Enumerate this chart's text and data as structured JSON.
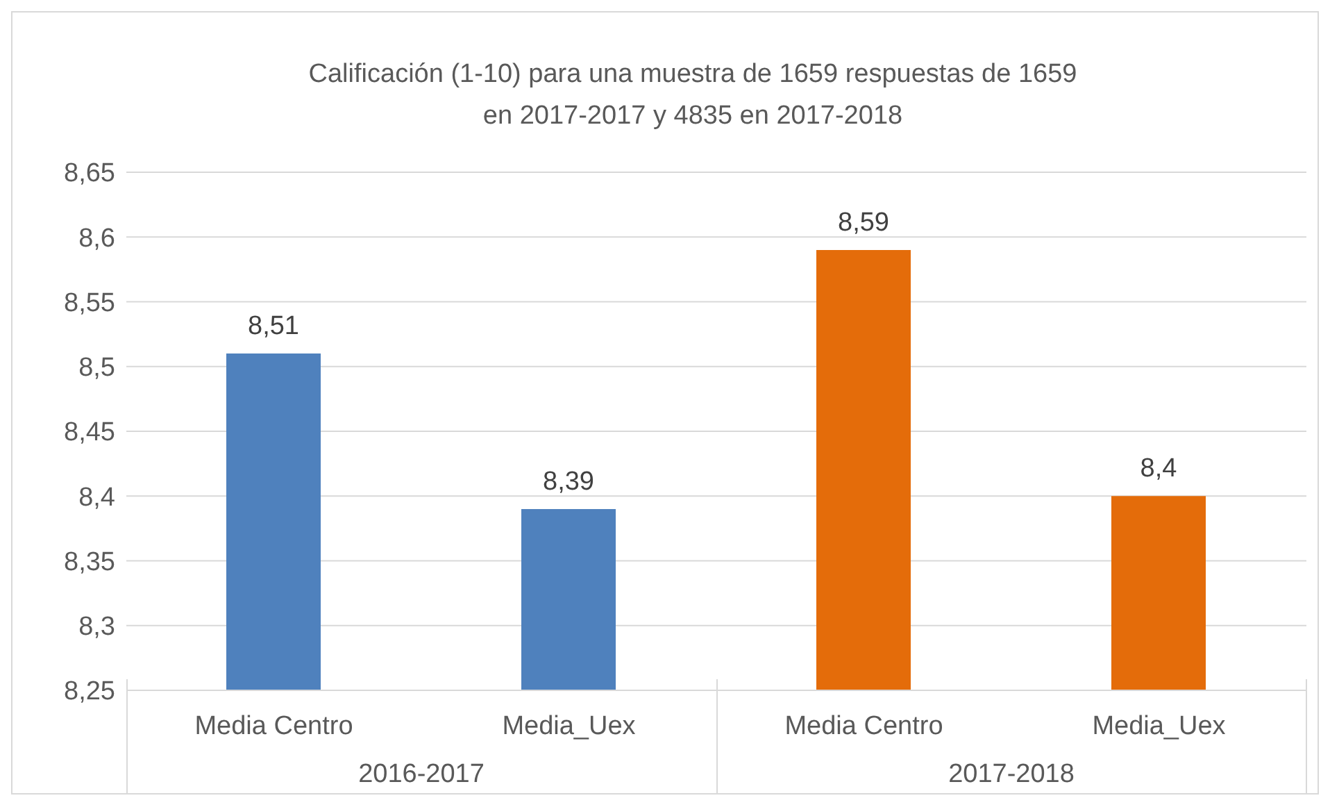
{
  "chart_data": {
    "type": "bar",
    "title": "Calificación (1-10) para una muestra de 1659 respuestas de 1659 en 2017-2017 y 4835 en 2017-2018",
    "categories": [
      "Media Centro",
      "Media_Uex",
      "Media Centro",
      "Media_Uex"
    ],
    "values": [
      8.51,
      8.39,
      8.59,
      8.4
    ],
    "colors": [
      "#4f81bd",
      "#4f81bd",
      "#e46c0a",
      "#e46c0a"
    ],
    "value_labels": [
      "8,51",
      "8,39",
      "8,59",
      "8,4"
    ],
    "ylim": [
      8.25,
      8.65
    ],
    "yticks": [
      {
        "value": 8.25,
        "label": "8,25"
      },
      {
        "value": 8.3,
        "label": "8,3"
      },
      {
        "value": 8.35,
        "label": "8,35"
      },
      {
        "value": 8.4,
        "label": "8,4"
      },
      {
        "value": 8.45,
        "label": "8,45"
      },
      {
        "value": 8.5,
        "label": "8,5"
      },
      {
        "value": 8.55,
        "label": "8,55"
      },
      {
        "value": 8.6,
        "label": "8,6"
      },
      {
        "value": 8.65,
        "label": "8,65"
      }
    ],
    "grid": "y",
    "annotations": [
      "2016-2017",
      "2017-2018"
    ]
  }
}
